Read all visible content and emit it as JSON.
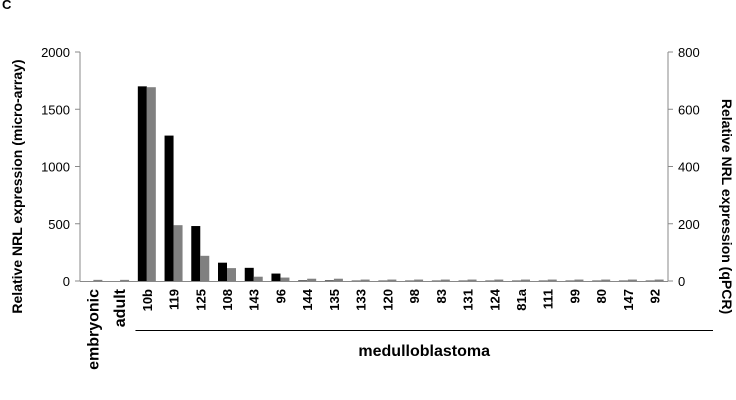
{
  "chart_data": {
    "type": "bar",
    "corner_text": "C",
    "categories": [
      "embryonic",
      "adult",
      "10b",
      "119",
      "125",
      "108",
      "143",
      "96",
      "144",
      "135",
      "133",
      "120",
      "98",
      "83",
      "131",
      "124",
      "81a",
      "111",
      "99",
      "80",
      "147",
      "92"
    ],
    "series": [
      {
        "axis": "left",
        "color": "#000000",
        "values": [
          0,
          0,
          1700,
          1270,
          480,
          160,
          115,
          65,
          5,
          5,
          3,
          3,
          3,
          3,
          3,
          3,
          3,
          3,
          3,
          3,
          3,
          3
        ]
      },
      {
        "axis": "right",
        "color": "#808080",
        "values": [
          4,
          4,
          677,
          195,
          88,
          45,
          15,
          12,
          8,
          8,
          5,
          5,
          5,
          5,
          5,
          5,
          5,
          5,
          5,
          5,
          5,
          5
        ]
      }
    ],
    "ylabel": "Relative NRL expression (micro-array)",
    "y2label": "Relative NRL expression (qPCR)",
    "ylim": [
      0,
      2000
    ],
    "y2lim": [
      0,
      800
    ],
    "yticks": [
      0,
      500,
      1000,
      1500,
      2000
    ],
    "y2ticks": [
      0,
      200,
      400,
      600,
      800
    ],
    "group_label": "medulloblastoma",
    "grid": false,
    "legend": "none"
  }
}
